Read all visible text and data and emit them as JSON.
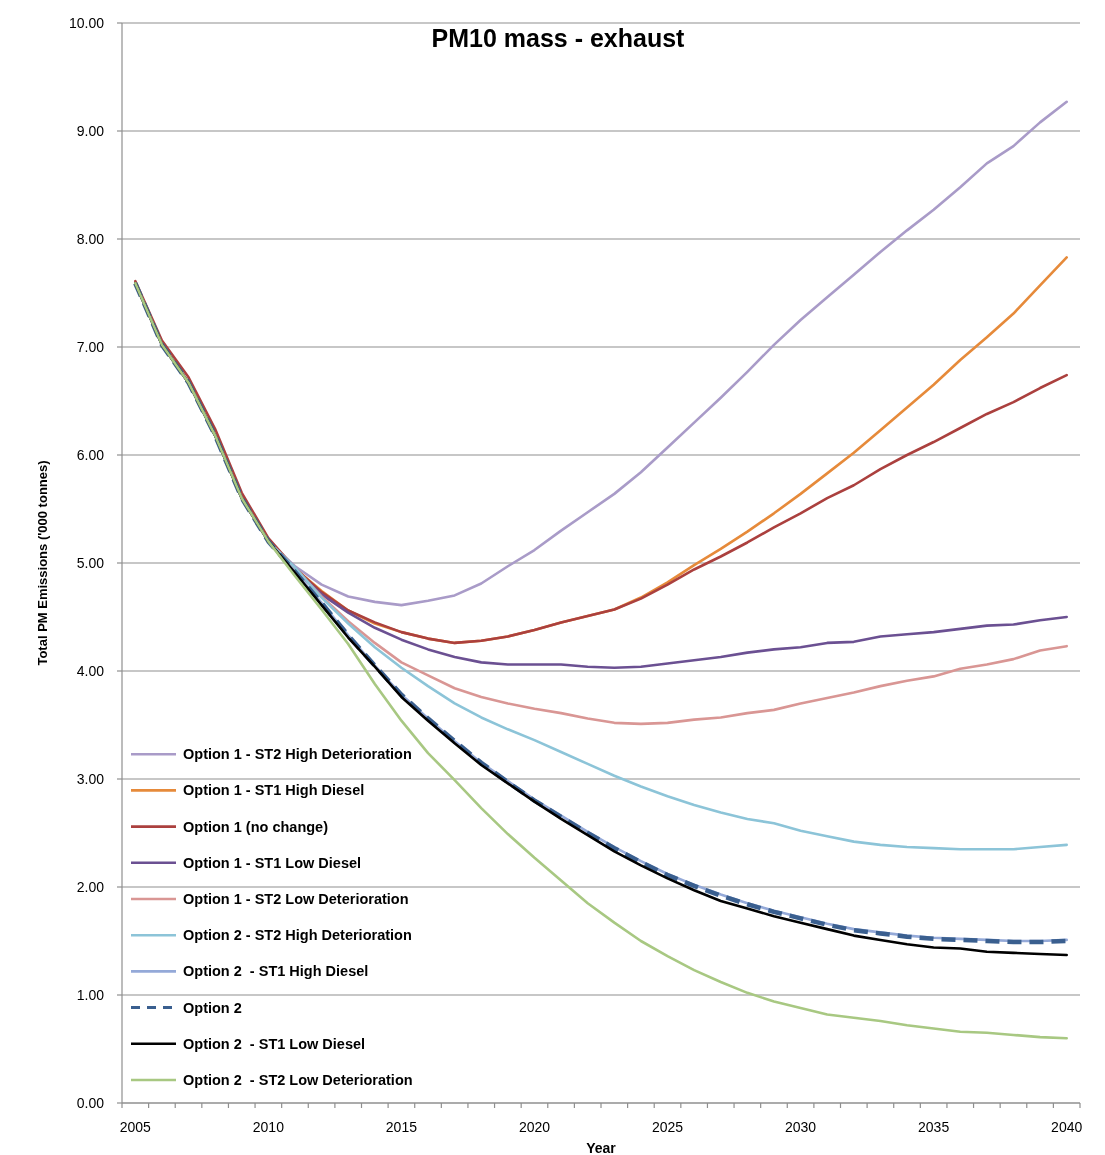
{
  "chart_data": {
    "type": "line",
    "title": "PM10 mass - exhaust",
    "xlabel": "Year",
    "ylabel": "Total PM Emissions ('000 tonnes)",
    "categories": [
      "2005",
      null,
      null,
      null,
      null,
      "2010",
      null,
      null,
      null,
      null,
      "2015",
      null,
      null,
      null,
      null,
      "2020",
      null,
      null,
      null,
      null,
      "2025",
      null,
      null,
      null,
      null,
      "2030",
      null,
      null,
      null,
      null,
      "2035",
      null,
      null,
      null,
      null,
      "2040"
    ],
    "ylim": [
      0,
      10
    ],
    "yticks": [
      {
        "value": 0,
        "label": "0.00"
      },
      {
        "value": 1,
        "label": "1.00"
      },
      {
        "value": 2,
        "label": "2.00"
      },
      {
        "value": 3,
        "label": "3.00"
      },
      {
        "value": 4,
        "label": "4.00"
      },
      {
        "value": 5,
        "label": "5.00"
      },
      {
        "value": 6,
        "label": "6.00"
      },
      {
        "value": 7,
        "label": "7.00"
      },
      {
        "value": 8,
        "label": "8.00"
      },
      {
        "value": 9,
        "label": "9.00"
      },
      {
        "value": 10,
        "label": "10.00"
      }
    ],
    "grid": "y",
    "legend": "bottom left",
    "series": [
      {
        "name": "Option 1 - ST2 High Deterioration",
        "color": "#a99bc8",
        "values": [
          7.59,
          7.02,
          6.67,
          6.18,
          5.6,
          5.2,
          4.97,
          4.8,
          4.69,
          4.64,
          4.61,
          4.65,
          4.7,
          4.81,
          4.97,
          5.12,
          5.3,
          5.47,
          5.64,
          5.84,
          6.07,
          6.3,
          6.53,
          6.77,
          7.02,
          7.25,
          7.46,
          7.67,
          7.88,
          8.08,
          8.27,
          8.48,
          8.7,
          8.86,
          9.08,
          9.27
        ]
      },
      {
        "name": "Option 1 - ST1 High Diesel",
        "color": "#e68a3a",
        "values": [
          null,
          null,
          null,
          null,
          null,
          5.2,
          4.95,
          4.74,
          4.56,
          4.44,
          4.36,
          4.3,
          4.26,
          4.28,
          4.32,
          4.38,
          4.45,
          4.51,
          4.57,
          4.68,
          4.82,
          4.98,
          5.13,
          5.29,
          5.46,
          5.64,
          5.83,
          6.02,
          6.23,
          6.44,
          6.65,
          6.88,
          7.09,
          7.31,
          7.57,
          7.83
        ]
      },
      {
        "name": "Option 1 (no change)",
        "color": "#ab403e",
        "values": [
          7.61,
          7.06,
          6.72,
          6.24,
          5.65,
          5.23,
          4.95,
          4.73,
          4.56,
          4.45,
          4.36,
          4.3,
          4.26,
          4.28,
          4.32,
          4.38,
          4.45,
          4.51,
          4.57,
          4.67,
          4.8,
          4.94,
          5.06,
          5.19,
          5.33,
          5.46,
          5.6,
          5.72,
          5.87,
          6.0,
          6.12,
          6.25,
          6.38,
          6.49,
          6.62,
          6.74
        ]
      },
      {
        "name": "Option 1 - ST1 Low Diesel",
        "color": "#6b5092",
        "values": [
          7.59,
          7.02,
          6.67,
          6.18,
          5.6,
          5.2,
          4.93,
          4.71,
          4.54,
          4.4,
          4.29,
          4.2,
          4.13,
          4.08,
          4.06,
          4.06,
          4.06,
          4.04,
          4.03,
          4.04,
          4.07,
          4.1,
          4.13,
          4.17,
          4.2,
          4.22,
          4.26,
          4.27,
          4.32,
          4.34,
          4.36,
          4.39,
          4.42,
          4.43,
          4.47,
          4.5
        ]
      },
      {
        "name": "Option 1 - ST2 Low Deterioration",
        "color": "#d99694",
        "values": [
          7.59,
          7.02,
          6.67,
          6.18,
          5.6,
          5.2,
          4.95,
          4.69,
          4.46,
          4.26,
          4.08,
          3.96,
          3.84,
          3.76,
          3.7,
          3.65,
          3.61,
          3.56,
          3.52,
          3.51,
          3.52,
          3.55,
          3.57,
          3.61,
          3.64,
          3.7,
          3.75,
          3.8,
          3.86,
          3.91,
          3.95,
          4.02,
          4.06,
          4.11,
          4.19,
          4.23
        ]
      },
      {
        "name": "Option 2 - ST2 High Deterioration",
        "color": "#8cc4d8",
        "values": [
          7.59,
          7.02,
          6.67,
          6.18,
          5.6,
          5.2,
          4.96,
          4.68,
          4.44,
          4.22,
          4.03,
          3.86,
          3.7,
          3.57,
          3.46,
          3.36,
          3.25,
          3.14,
          3.03,
          2.93,
          2.84,
          2.76,
          2.69,
          2.63,
          2.59,
          2.52,
          2.47,
          2.42,
          2.39,
          2.37,
          2.36,
          2.35,
          2.35,
          2.35,
          2.37,
          2.39
        ]
      },
      {
        "name": "Option 2  - ST1 High Diesel",
        "color": "#94a9d8",
        "values": [
          7.59,
          7.02,
          6.67,
          6.18,
          5.6,
          5.2,
          4.92,
          4.63,
          4.33,
          4.05,
          3.78,
          3.56,
          3.35,
          3.15,
          2.98,
          2.81,
          2.66,
          2.51,
          2.37,
          2.24,
          2.12,
          2.02,
          1.93,
          1.85,
          1.78,
          1.72,
          1.66,
          1.61,
          1.58,
          1.55,
          1.53,
          1.52,
          1.51,
          1.5,
          1.5,
          1.51
        ]
      },
      {
        "name": "Option 2",
        "color": "#3a5f8f",
        "line_style": "dashed",
        "values": [
          7.59,
          7.02,
          6.67,
          6.18,
          5.6,
          5.2,
          4.92,
          4.63,
          4.33,
          4.05,
          3.78,
          3.56,
          3.35,
          3.15,
          2.97,
          2.8,
          2.65,
          2.5,
          2.36,
          2.23,
          2.11,
          2.01,
          1.92,
          1.84,
          1.77,
          1.71,
          1.65,
          1.6,
          1.57,
          1.54,
          1.52,
          1.51,
          1.5,
          1.49,
          1.49,
          1.5
        ]
      },
      {
        "name": "Option 2  - ST1 Low Diesel",
        "color": "#000000",
        "values": [
          7.59,
          7.02,
          6.67,
          6.18,
          5.6,
          5.2,
          4.91,
          4.61,
          4.31,
          4.04,
          3.76,
          3.54,
          3.33,
          3.13,
          2.96,
          2.79,
          2.63,
          2.48,
          2.33,
          2.2,
          2.08,
          1.97,
          1.87,
          1.8,
          1.73,
          1.67,
          1.61,
          1.55,
          1.51,
          1.47,
          1.44,
          1.43,
          1.4,
          1.39,
          1.38,
          1.37
        ]
      },
      {
        "name": "Option 2  - ST2 Low Deterioration",
        "color": "#a8c882",
        "values": [
          7.59,
          7.02,
          6.67,
          6.18,
          5.6,
          5.2,
          4.88,
          4.57,
          4.25,
          3.88,
          3.54,
          3.24,
          2.99,
          2.73,
          2.49,
          2.27,
          2.06,
          1.85,
          1.67,
          1.5,
          1.36,
          1.23,
          1.12,
          1.02,
          0.94,
          0.88,
          0.82,
          0.79,
          0.76,
          0.72,
          0.69,
          0.66,
          0.65,
          0.63,
          0.61,
          0.6
        ]
      }
    ]
  }
}
